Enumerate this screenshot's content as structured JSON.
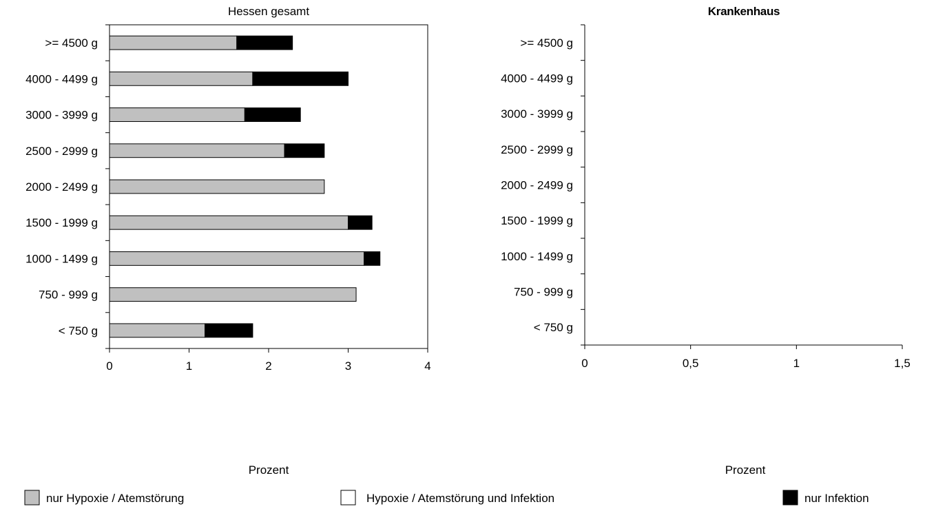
{
  "legend": [
    {
      "label": "nur Hypoxie / Atemstörung",
      "color": "#c0c0c0"
    },
    {
      "label": "Hypoxie / Atemstörung und Infektion",
      "color": "#ffffff"
    },
    {
      "label": "nur Infektion",
      "color": "#000000"
    }
  ],
  "chart_data": [
    {
      "type": "bar",
      "orientation": "horizontal",
      "stacked": true,
      "title": "Hessen gesamt",
      "xlabel": "Prozent",
      "ylabel": "",
      "xlim": [
        0,
        4
      ],
      "xticks": [
        0,
        1,
        2,
        3,
        4
      ],
      "xtick_labels": [
        "0",
        "1",
        "2",
        "3",
        "4"
      ],
      "grid": false,
      "categories": [
        ">= 4500 g",
        "4000 - 4499 g",
        "3000 - 3999 g",
        "2500 - 2999 g",
        "2000 - 2499 g",
        "1500 - 1999 g",
        "1000 - 1499 g",
        "750 - 999 g",
        "< 750 g"
      ],
      "series": [
        {
          "name": "nur Hypoxie / Atemstörung",
          "color": "#c0c0c0",
          "values": [
            1.6,
            1.8,
            1.7,
            2.2,
            2.7,
            3.0,
            3.2,
            3.1,
            1.2
          ]
        },
        {
          "name": "Hypoxie / Atemstörung und Infektion",
          "color": "#ffffff",
          "values": [
            0,
            0,
            0,
            0,
            0,
            0,
            0,
            0,
            0
          ]
        },
        {
          "name": "nur Infektion",
          "color": "#000000",
          "values": [
            0.7,
            1.2,
            0.7,
            0.5,
            0,
            0.3,
            0.2,
            0,
            0.6
          ]
        }
      ]
    },
    {
      "type": "bar",
      "orientation": "horizontal",
      "stacked": true,
      "title": "Krankenhaus",
      "xlabel": "Prozent",
      "ylabel": "",
      "xlim": [
        0,
        1.5
      ],
      "xticks": [
        0,
        0.5,
        1,
        1.5
      ],
      "xtick_labels": [
        "0",
        "0,5",
        "1",
        "1,5"
      ],
      "grid": false,
      "categories": [
        ">= 4500 g",
        "4000 - 4499 g",
        "3000 - 3999 g",
        "2500 - 2999 g",
        "2000 - 2499 g",
        "1500 - 1999 g",
        "1000 - 1499 g",
        "750 - 999 g",
        "< 750 g"
      ],
      "series": []
    }
  ]
}
